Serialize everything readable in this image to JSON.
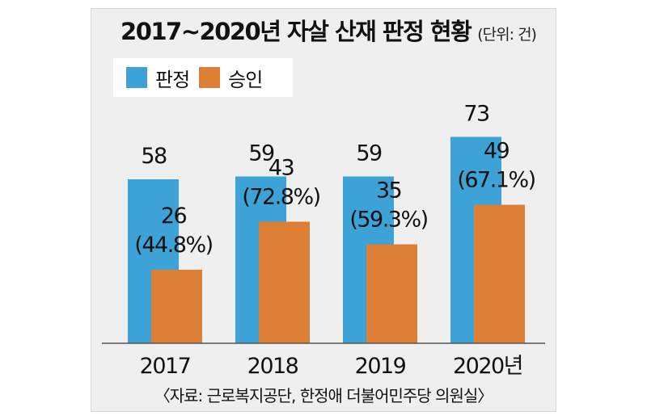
{
  "title": "2017~2020년 자살 산재 판정 현황",
  "unit": "(단위: 건)",
  "source": "〈자료: 근로복지공단, 한정애 더불어민주당 의원실〉",
  "colors": {
    "judgment": "#3da2d6",
    "approval": "#dc7f34",
    "background": "#efefef"
  },
  "chart_data": {
    "type": "bar",
    "categories": [
      "2017",
      "2018",
      "2019",
      "2020년"
    ],
    "series": [
      {
        "name": "판정",
        "values": [
          58,
          59,
          59,
          73
        ],
        "labels": [
          "58",
          "59",
          "59",
          "73"
        ]
      },
      {
        "name": "승인",
        "values": [
          26,
          43,
          35,
          49
        ],
        "labels": [
          "26",
          "43",
          "35",
          "49"
        ],
        "rates": [
          "(44.8%)",
          "(72.8%)",
          "(59.3%)",
          "(67.1%)"
        ]
      }
    ],
    "ylim": [
      0,
      80
    ],
    "legend_position": "top-left",
    "grid": false
  }
}
